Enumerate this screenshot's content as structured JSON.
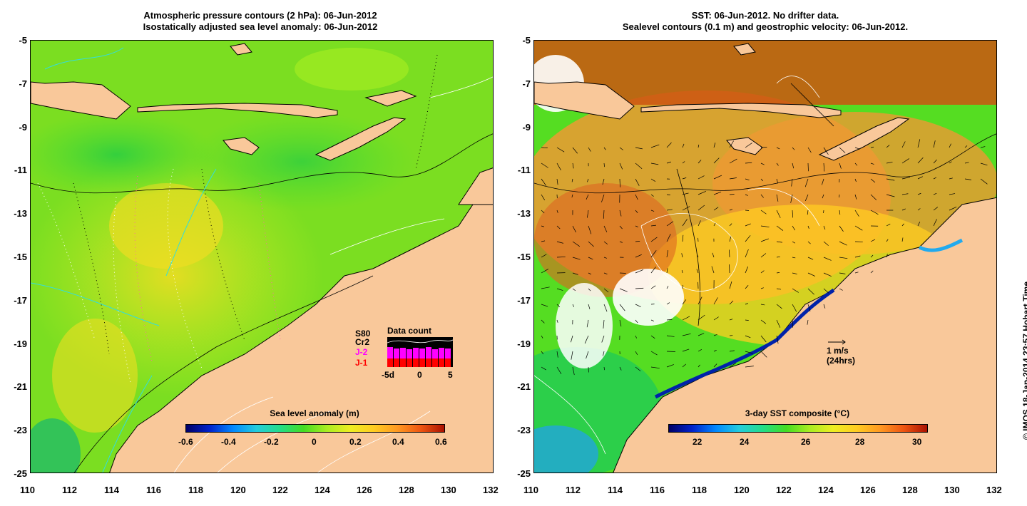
{
  "left_panel": {
    "title_line1": "Atmospheric pressure contours (2 hPa): 06-Jun-2012",
    "title_line2": "Isostatically adjusted sea level anomaly: 06-Jun-2012",
    "colorbar_title": "Sea level anomaly (m)",
    "colorbar_ticks": [
      "-0.6",
      "-0.4",
      "-0.2",
      "0",
      "0.2",
      "0.4",
      "0.6"
    ],
    "data_count": {
      "title": "Data count",
      "satellites": [
        "S80",
        "Cr2",
        "J-2",
        "J-1"
      ],
      "satellite_colors": [
        "#000000",
        "#000000",
        "#ff00ff",
        "#ff0000"
      ],
      "axis_labels": [
        "-5d",
        "0",
        "5"
      ]
    }
  },
  "right_panel": {
    "title_line1": "SST: 06-Jun-2012. No drifter data.",
    "title_line2": "Sealevel contours (0.1 m) and geostrophic velocity: 06-Jun-2012.",
    "colorbar_title": "3-day SST composite (°C)",
    "colorbar_ticks": [
      "22",
      "24",
      "26",
      "28",
      "30"
    ],
    "velocity_scale": {
      "label": "1 m/s",
      "sub": "(24hrs)"
    }
  },
  "axes": {
    "lat_ticks": [
      "-5",
      "-7",
      "-9",
      "-11",
      "-13",
      "-15",
      "-17",
      "-19",
      "-21",
      "-23",
      "-25"
    ],
    "lon_ticks": [
      "110",
      "112",
      "114",
      "116",
      "118",
      "120",
      "122",
      "124",
      "126",
      "128",
      "130",
      "132"
    ]
  },
  "credit": "© IMOS 18-Jan-2014 23:57 Hobart Time",
  "colors": {
    "land": "#f9c89a",
    "ocean_green": "#55dd22",
    "ocean_yellow": "#ccee22",
    "sst_orange": "#ee9933"
  }
}
